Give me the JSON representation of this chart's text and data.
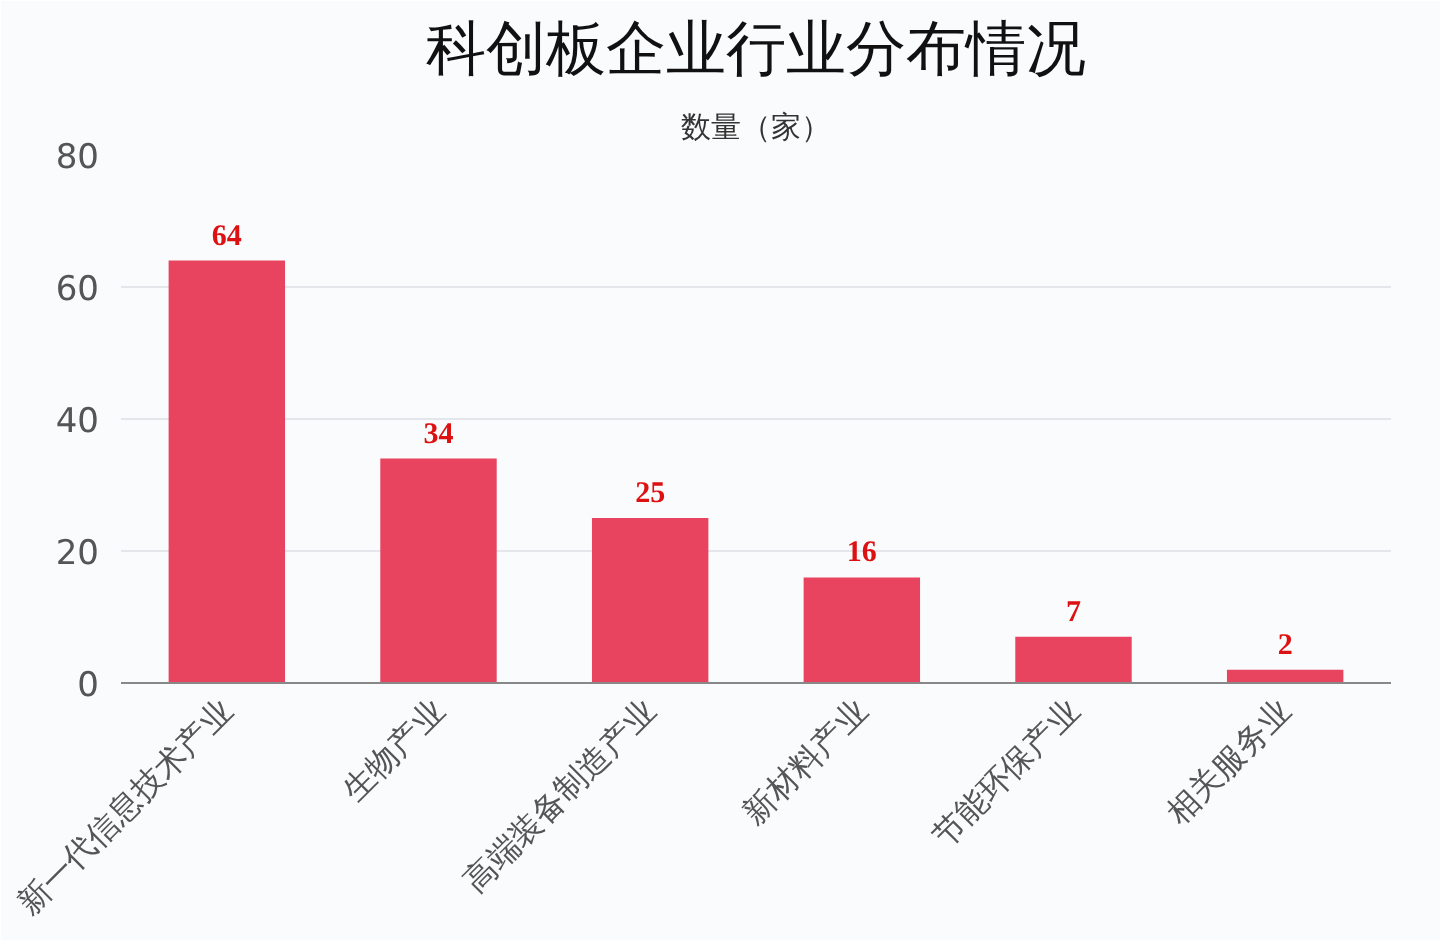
{
  "chart_data": {
    "type": "bar",
    "title": "科创板企业行业分布情况",
    "subtitle": "数量（家）",
    "categories": [
      "新一代信息技术产业",
      "生物产业",
      "高端装备制造产业",
      "新材料产业",
      "节能环保产业",
      "相关服务业"
    ],
    "values": [
      64,
      34,
      25,
      16,
      7,
      2
    ],
    "color": "#e8435f",
    "ylim": [
      0,
      80
    ],
    "yticks": [
      0,
      20,
      40,
      60,
      80
    ],
    "grid": "y",
    "data_labels": true
  }
}
